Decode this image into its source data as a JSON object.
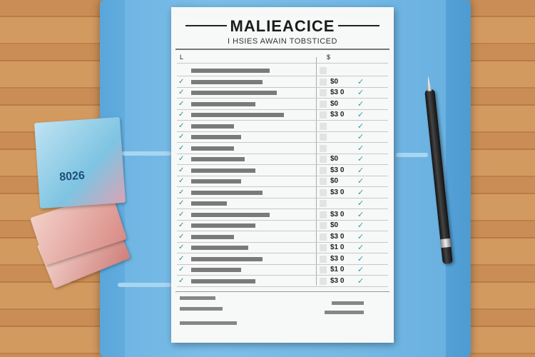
{
  "document": {
    "title": "MALIEACICE",
    "subtitle": "I HSIES AWAIN TOBSTICED",
    "header_row": {
      "col1": "L",
      "col2": "$"
    },
    "rows": [
      {
        "amount": "",
        "checked": false
      },
      {
        "amount": "$0",
        "checked": true
      },
      {
        "amount": "$3 0",
        "checked": true
      },
      {
        "amount": "$0",
        "checked": true
      },
      {
        "amount": "$3 0",
        "checked": true
      },
      {
        "amount": "",
        "checked": true
      },
      {
        "amount": "",
        "checked": true
      },
      {
        "amount": "",
        "checked": true
      },
      {
        "amount": "$0",
        "checked": true
      },
      {
        "amount": "$3 0",
        "checked": true
      },
      {
        "amount": "$0",
        "checked": true
      },
      {
        "amount": "$3 0",
        "checked": true
      },
      {
        "amount": "",
        "checked": true
      },
      {
        "amount": "$3 0",
        "checked": true
      },
      {
        "amount": "$0",
        "checked": true
      },
      {
        "amount": "$3 0",
        "checked": true
      },
      {
        "amount": "$1 0",
        "checked": true
      },
      {
        "amount": "$3 0",
        "checked": true
      },
      {
        "amount": "$1 0",
        "checked": true
      },
      {
        "amount": "$3 0",
        "checked": true
      }
    ]
  },
  "banknote": {
    "text": "8026"
  },
  "colors": {
    "folder": "#6ab4e4",
    "wood": "#c98d55",
    "check": "#2d8a86"
  }
}
